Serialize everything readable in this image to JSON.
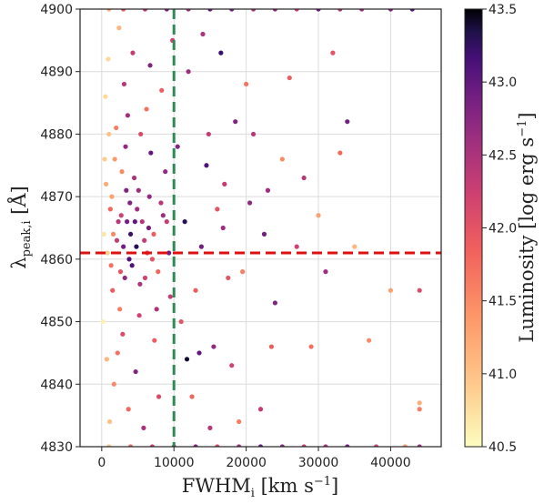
{
  "chart_data": {
    "type": "scatter",
    "title": "",
    "xlabel": {
      "main": "FWHM",
      "sub": "i",
      "unit_pre": " [km s",
      "unit_sup": "−1",
      "unit_post": "]"
    },
    "ylabel": {
      "main": "λ",
      "sub": "peak,i",
      "unit": " [Å]"
    },
    "colorbar_label": {
      "main": "Luminosity [log erg s",
      "sup": "−1",
      "post": "]"
    },
    "xlim": [
      -3000,
      47000
    ],
    "ylim": [
      4830,
      4900
    ],
    "x_ticks": [
      0,
      10000,
      20000,
      30000,
      40000
    ],
    "x_tick_labels": [
      "0",
      "10000",
      "20000",
      "30000",
      "40000"
    ],
    "y_ticks": [
      4830,
      4840,
      4850,
      4860,
      4870,
      4880,
      4890,
      4900
    ],
    "y_tick_labels": [
      "4830",
      "4840",
      "4850",
      "4860",
      "4870",
      "4880",
      "4890",
      "4900"
    ],
    "colorbar": {
      "colormap": "magma_r",
      "vmin": 40.5,
      "vmax": 43.5,
      "ticks": [
        40.5,
        41.0,
        41.5,
        42.0,
        42.5,
        43.0,
        43.5
      ],
      "tick_labels": [
        "40.5",
        "41.0",
        "41.5",
        "42.0",
        "42.5",
        "43.0",
        "43.5"
      ]
    },
    "reference_lines": [
      {
        "orientation": "vertical",
        "x": 10000,
        "color": "#2e8b57",
        "style": "dashed"
      },
      {
        "orientation": "horizontal",
        "y": 4861,
        "color": "#e01010",
        "style": "dashed"
      }
    ],
    "grid": true,
    "series": [
      {
        "points": [
          [
            600,
            4872,
            41.2
          ],
          [
            1200,
            4868,
            41.8
          ],
          [
            2100,
            4863,
            42.3
          ],
          [
            3500,
            4866,
            42.9
          ],
          [
            4200,
            4859,
            43.1
          ],
          [
            5100,
            4871,
            42.6
          ],
          [
            6000,
            4857,
            42.2
          ],
          [
            2800,
            4874,
            41.5
          ],
          [
            1500,
            4855,
            41.9
          ],
          [
            3300,
            4878,
            42.7
          ],
          [
            4800,
            4862,
            43.3
          ],
          [
            5600,
            4866,
            42.4
          ],
          [
            7000,
            4860,
            42.0
          ],
          [
            2500,
            4852,
            41.6
          ],
          [
            3900,
            4869,
            42.8
          ],
          [
            800,
            4861,
            40.9
          ],
          [
            1800,
            4876,
            41.4
          ],
          [
            2900,
            4848,
            42.1
          ],
          [
            4500,
            4873,
            42.5
          ],
          [
            6500,
            4865,
            42.9
          ],
          [
            7800,
            4858,
            41.8
          ],
          [
            9000,
            4866,
            42.3
          ],
          [
            1000,
            4880,
            41.0
          ],
          [
            2200,
            4845,
            41.7
          ],
          [
            3600,
            4883,
            42.6
          ],
          [
            5200,
            4851,
            42.2
          ],
          [
            6800,
            4877,
            43.0
          ],
          [
            8200,
            4869,
            42.4
          ],
          [
            300,
            4864,
            40.7
          ],
          [
            1400,
            4870,
            41.3
          ],
          [
            2600,
            4858,
            42.0
          ],
          [
            4000,
            4864,
            43.2
          ],
          [
            5400,
            4880,
            42.1
          ],
          [
            7300,
            4847,
            41.9
          ],
          [
            8800,
            4874,
            42.7
          ],
          [
            500,
            4886,
            40.8
          ],
          [
            1700,
            4840,
            41.5
          ],
          [
            3100,
            4888,
            42.4
          ],
          [
            4700,
            4842,
            42.8
          ],
          [
            6200,
            4884,
            41.7
          ],
          [
            7600,
            4852,
            42.5
          ],
          [
            9300,
            4861,
            42.9
          ],
          [
            12000,
            4890,
            42.6
          ],
          [
            14500,
            4875,
            43.1
          ],
          [
            16000,
            4868,
            42.0
          ],
          [
            18500,
            4882,
            42.8
          ],
          [
            13000,
            4855,
            41.9
          ],
          [
            15500,
            4846,
            42.7
          ],
          [
            11500,
            4866,
            43.3
          ],
          [
            17000,
            4872,
            42.3
          ],
          [
            19500,
            4858,
            41.6
          ],
          [
            21000,
            4880,
            42.4
          ],
          [
            22500,
            4864,
            42.9
          ],
          [
            12500,
            4838,
            41.8
          ],
          [
            14000,
            4896,
            42.5
          ],
          [
            16500,
            4893,
            43.2
          ],
          [
            18000,
            4843,
            42.2
          ],
          [
            20000,
            4888,
            41.7
          ],
          [
            23000,
            4871,
            42.6
          ],
          [
            11000,
            4850,
            42.0
          ],
          [
            25000,
            4876,
            41.5
          ],
          [
            27000,
            4862,
            42.2
          ],
          [
            24000,
            4853,
            42.8
          ],
          [
            26000,
            4889,
            41.9
          ],
          [
            28000,
            4873,
            42.4
          ],
          [
            30000,
            4867,
            41.3
          ],
          [
            32000,
            4893,
            42.0
          ],
          [
            33000,
            4877,
            41.8
          ],
          [
            35000,
            4862,
            41.1
          ],
          [
            40000,
            4855,
            41.3
          ],
          [
            44000,
            4855,
            42.1
          ],
          [
            37000,
            4847,
            41.5
          ],
          [
            34000,
            4882,
            42.9
          ],
          [
            29000,
            4846,
            41.7
          ],
          [
            31000,
            4858,
            42.6
          ],
          [
            22000,
            4836,
            42.3
          ],
          [
            19000,
            4834,
            41.6
          ],
          [
            13500,
            4845,
            43.0
          ],
          [
            15000,
            4833,
            42.4
          ],
          [
            44000,
            4837,
            41.2
          ],
          [
            44000,
            4836,
            41.6
          ],
          [
            11800,
            4844,
            43.4
          ],
          [
            9800,
            4895,
            42.2
          ],
          [
            2400,
            4897,
            41.1
          ],
          [
            4300,
            4893,
            42.3
          ],
          [
            6700,
            4891,
            42.8
          ],
          [
            8300,
            4887,
            41.9
          ],
          [
            1100,
            4834,
            41.0
          ],
          [
            3700,
            4836,
            41.8
          ],
          [
            5800,
            4833,
            42.5
          ],
          [
            7900,
            4838,
            42.1
          ],
          [
            200,
            4850,
            40.6
          ],
          [
            400,
            4876,
            40.9
          ],
          [
            700,
            4844,
            41.1
          ],
          [
            900,
            4892,
            40.8
          ],
          [
            2000,
            4881,
            41.6
          ],
          [
            3200,
            4857,
            42.7
          ],
          [
            4600,
            4866,
            43.0
          ],
          [
            5900,
            4863,
            42.3
          ],
          [
            6600,
            4870,
            42.7
          ],
          [
            2700,
            4867,
            42.2
          ],
          [
            3000,
            4862,
            42.9
          ],
          [
            3800,
            4860,
            43.1
          ],
          [
            4900,
            4868,
            42.6
          ],
          [
            1600,
            4864,
            41.5
          ],
          [
            1300,
            4859,
            41.7
          ],
          [
            2300,
            4866,
            42.4
          ],
          [
            3400,
            4871,
            42.8
          ],
          [
            5300,
            4856,
            42.5
          ],
          [
            6300,
            4861,
            42.1
          ],
          [
            7200,
            4864,
            41.9
          ],
          [
            8500,
            4867,
            42.6
          ],
          [
            9500,
            4854,
            42.3
          ],
          [
            10500,
            4878,
            42.8
          ],
          [
            13800,
            4862,
            42.9
          ],
          [
            17500,
            4857,
            42.0
          ],
          [
            20500,
            4869,
            42.7
          ],
          [
            23500,
            4846,
            41.9
          ],
          [
            14800,
            4880,
            42.3
          ],
          [
            16800,
            4865,
            42.6
          ]
        ],
        "boundary_points_top": [
          [
            1000,
            4900,
            41.2
          ],
          [
            3000,
            4900,
            42.0
          ],
          [
            6000,
            4900,
            42.4
          ],
          [
            9000,
            4900,
            42.8
          ],
          [
            12000,
            4900,
            42.6
          ],
          [
            15000,
            4900,
            43.0
          ],
          [
            18000,
            4900,
            42.9
          ],
          [
            21000,
            4900,
            42.5
          ],
          [
            24000,
            4900,
            42.7
          ],
          [
            27000,
            4900,
            42.2
          ],
          [
            30000,
            4900,
            42.9
          ],
          [
            33000,
            4900,
            42.4
          ],
          [
            36000,
            4900,
            42.6
          ],
          [
            40000,
            4900,
            42.8
          ],
          [
            43000,
            4900,
            43.1
          ]
        ],
        "boundary_points_bottom": [
          [
            1000,
            4830,
            41.0
          ],
          [
            4000,
            4830,
            41.8
          ],
          [
            7000,
            4830,
            42.3
          ],
          [
            10000,
            4830,
            42.5
          ],
          [
            13000,
            4830,
            42.8
          ],
          [
            16000,
            4830,
            42.1
          ],
          [
            19000,
            4830,
            42.6
          ],
          [
            22000,
            4830,
            43.0
          ],
          [
            25000,
            4830,
            42.7
          ],
          [
            28000,
            4830,
            42.3
          ],
          [
            31000,
            4830,
            42.5
          ],
          [
            34000,
            4830,
            42.9
          ],
          [
            38000,
            4830,
            42.2
          ],
          [
            42000,
            4830,
            41.4
          ],
          [
            44000,
            4830,
            42.6
          ]
        ]
      }
    ]
  }
}
